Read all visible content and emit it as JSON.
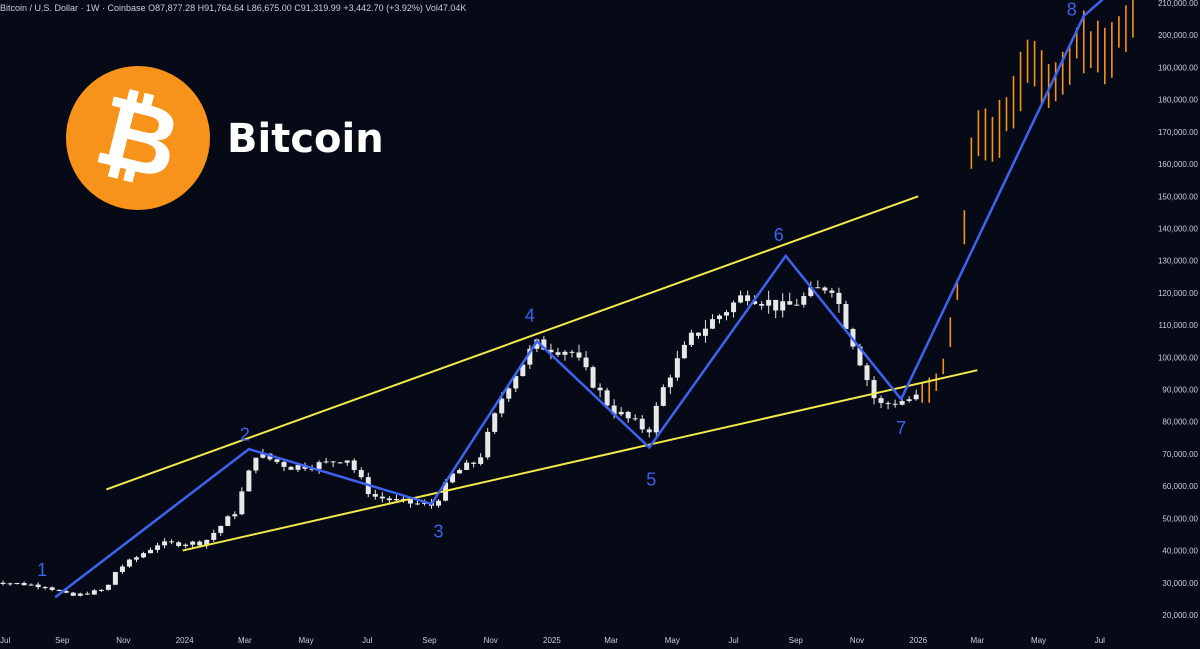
{
  "header": {
    "symbol": "Bitcoin / U.S. Dollar · 1W · Coinbase",
    "open": "O87,877.28",
    "high": "H91,764.64",
    "low": "L86,675.00",
    "close": "C91,319.99",
    "change": "+3,442.70 (+3.92%)",
    "volume": "Vol47.04K"
  },
  "brand": {
    "name": "Bitcoin",
    "logo_glyph": "₿",
    "logo_color": "#f7931a"
  },
  "colors": {
    "background": "#050a16",
    "candle": "#e8e8e8",
    "projection": "#f7931a",
    "channel": "#f2e94b",
    "wave": "#3d63f0",
    "wave_label": "#3d63f0"
  },
  "chart_data": {
    "type": "candlestick",
    "title": "Bitcoin / U.S. Dollar · 1W · Coinbase",
    "y_scale": "linear",
    "ylim": [
      15000,
      210000
    ],
    "y_ticks": [
      20000,
      30000,
      40000,
      50000,
      60000,
      70000,
      80000,
      90000,
      100000,
      110000,
      120000,
      130000,
      140000,
      150000,
      160000,
      170000,
      180000,
      190000,
      200000,
      210000
    ],
    "y_tick_labels": [
      "20,000.00",
      "30,000.00",
      "40,000.00",
      "50,000.00",
      "60,000.00",
      "70,000.00",
      "80,000.00",
      "90,000.00",
      "100,000.00",
      "110,000.00",
      "120,000.00",
      "130,000.00",
      "140,000.00",
      "150,000.00",
      "160,000.00",
      "170,000.00",
      "180,000.00",
      "190,000.00",
      "200,000.00",
      "210,000.00"
    ],
    "xlim": [
      "2023-07-01",
      "2026-08-20"
    ],
    "x_ticks": [
      {
        "date": "2023-07-01",
        "label": "Jul"
      },
      {
        "date": "2023-09-01",
        "label": "Sep"
      },
      {
        "date": "2023-11-01",
        "label": "Nov"
      },
      {
        "date": "2024-01-01",
        "label": "2024"
      },
      {
        "date": "2024-03-01",
        "label": "Mar"
      },
      {
        "date": "2024-05-01",
        "label": "May"
      },
      {
        "date": "2024-07-01",
        "label": "Jul"
      },
      {
        "date": "2024-09-01",
        "label": "Sep"
      },
      {
        "date": "2024-11-01",
        "label": "Nov"
      },
      {
        "date": "2025-01-01",
        "label": "2025"
      },
      {
        "date": "2025-03-01",
        "label": "Mar"
      },
      {
        "date": "2025-05-01",
        "label": "May"
      },
      {
        "date": "2025-07-01",
        "label": "Jul"
      },
      {
        "date": "2025-09-01",
        "label": "Sep"
      },
      {
        "date": "2025-11-01",
        "label": "Nov"
      },
      {
        "date": "2026-01-01",
        "label": "2026"
      },
      {
        "date": "2026-03-01",
        "label": "Mar"
      },
      {
        "date": "2026-05-01",
        "label": "May"
      },
      {
        "date": "2026-07-01",
        "label": "Jul"
      }
    ],
    "price_path": [
      [
        "2023-06-20",
        30500
      ],
      [
        "2023-08-15",
        29000
      ],
      [
        "2023-09-10",
        25800
      ],
      [
        "2023-10-15",
        28000
      ],
      [
        "2023-10-25",
        34000
      ],
      [
        "2023-12-05",
        42000
      ],
      [
        "2024-01-20",
        42500
      ],
      [
        "2024-02-20",
        52000
      ],
      [
        "2024-03-12",
        70000
      ],
      [
        "2024-04-15",
        66000
      ],
      [
        "2024-05-20",
        67000
      ],
      [
        "2024-06-10",
        69000
      ],
      [
        "2024-07-05",
        57000
      ],
      [
        "2024-08-05",
        55000
      ],
      [
        "2024-09-05",
        54000
      ],
      [
        "2024-09-25",
        64000
      ],
      [
        "2024-10-20",
        68000
      ],
      [
        "2024-11-15",
        90000
      ],
      [
        "2024-12-15",
        104000
      ],
      [
        "2025-01-20",
        102000
      ],
      [
        "2025-03-01",
        84000
      ],
      [
        "2025-04-07",
        77000
      ],
      [
        "2025-04-25",
        93000
      ],
      [
        "2025-05-20",
        106000
      ],
      [
        "2025-07-14",
        120000
      ],
      [
        "2025-08-20",
        115000
      ],
      [
        "2025-10-06",
        123000
      ],
      [
        "2025-11-21",
        85000
      ],
      [
        "2025-12-31",
        87500
      ]
    ],
    "projection_path": [
      [
        "2026-01-05",
        88000
      ],
      [
        "2026-01-25",
        95000
      ],
      [
        "2026-02-10",
        122000
      ],
      [
        "2026-02-25",
        168000
      ],
      [
        "2026-03-25",
        172000
      ],
      [
        "2026-04-20",
        192000
      ],
      [
        "2026-05-15",
        182000
      ],
      [
        "2026-06-10",
        198000
      ],
      [
        "2026-07-05",
        193000
      ],
      [
        "2026-08-05",
        210000
      ]
    ],
    "wave_path": [
      {
        "label": "1",
        "date": "2023-08-25",
        "price": 25500
      },
      {
        "label": "2",
        "date": "2024-03-05",
        "price": 71500
      },
      {
        "label": "3",
        "date": "2024-09-03",
        "price": 54500
      },
      {
        "label": "4",
        "date": "2024-12-17",
        "price": 105000
      },
      {
        "label": "5",
        "date": "2025-04-08",
        "price": 72000
      },
      {
        "label": "6",
        "date": "2025-08-22",
        "price": 131500
      },
      {
        "label": "7",
        "date": "2025-12-15",
        "price": 87000
      },
      {
        "label": "8",
        "date": "2026-06-15",
        "price": 206000
      }
    ],
    "wave_end": {
      "date": "2026-07-07",
      "price": 212000
    },
    "wave_labels": [
      {
        "label": "1",
        "date": "2023-08-12",
        "price": 34000
      },
      {
        "label": "2",
        "date": "2024-03-01",
        "price": 76000
      },
      {
        "label": "3",
        "date": "2024-09-10",
        "price": 46000
      },
      {
        "label": "4",
        "date": "2024-12-10",
        "price": 113000
      },
      {
        "label": "5",
        "date": "2025-04-10",
        "price": 62000
      },
      {
        "label": "6",
        "date": "2025-08-15",
        "price": 138000
      },
      {
        "label": "7",
        "date": "2025-12-15",
        "price": 78000
      },
      {
        "label": "8",
        "date": "2026-06-03",
        "price": 208000
      }
    ],
    "channel_upper": [
      [
        "2023-10-15",
        59000
      ],
      [
        "2026-01-01",
        150000
      ]
    ],
    "channel_lower": [
      [
        "2023-12-30",
        40000
      ],
      [
        "2026-03-01",
        96000
      ]
    ]
  }
}
